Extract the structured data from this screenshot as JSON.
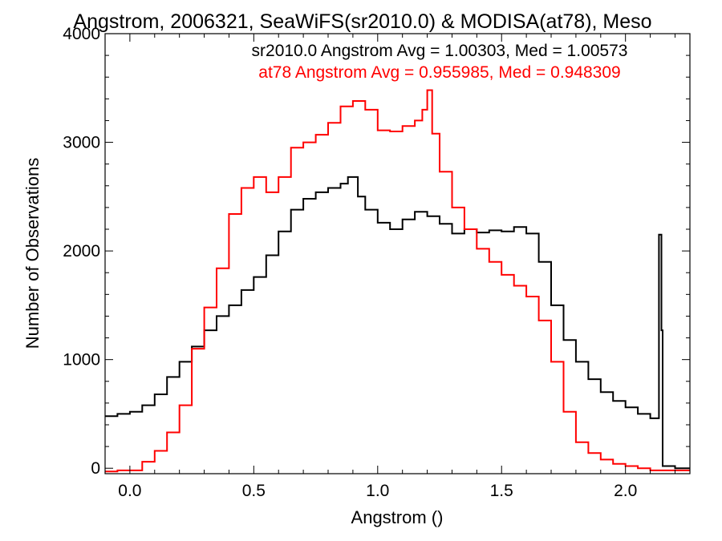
{
  "chart_data": {
    "type": "line",
    "title": "Angstrom, 2006321, SeaWiFS(sr2010.0) & MODISA(at78), Meso",
    "xlabel": "Angstrom ()",
    "ylabel": "Number of Observations",
    "xlim": [
      -0.1,
      2.26
    ],
    "ylim": [
      -50,
      4000
    ],
    "x_ticks": [
      0.0,
      0.5,
      1.0,
      1.5,
      2.0
    ],
    "x_tick_labels": [
      "0.0",
      "0.5",
      "1.0",
      "1.5",
      "2.0"
    ],
    "y_ticks": [
      0,
      1000,
      2000,
      3000,
      4000
    ],
    "y_tick_labels": [
      "0",
      "1000",
      "2000",
      "3000",
      "4000"
    ],
    "annotations": [
      {
        "text": "sr2010.0 Angstrom Avg = 1.00303, Med = 1.00573",
        "color": "#000000"
      },
      {
        "text": "at78 Angstrom Avg = 0.955985, Med = 0.948309",
        "color": "#ff0000"
      }
    ],
    "series": [
      {
        "color": "#000000",
        "points": [
          [
            -0.1,
            480
          ],
          [
            -0.05,
            500
          ],
          [
            0.0,
            520
          ],
          [
            0.05,
            580
          ],
          [
            0.1,
            680
          ],
          [
            0.15,
            840
          ],
          [
            0.2,
            980
          ],
          [
            0.25,
            1120
          ],
          [
            0.3,
            1270
          ],
          [
            0.35,
            1400
          ],
          [
            0.4,
            1500
          ],
          [
            0.45,
            1640
          ],
          [
            0.5,
            1760
          ],
          [
            0.55,
            1960
          ],
          [
            0.6,
            2180
          ],
          [
            0.65,
            2380
          ],
          [
            0.7,
            2480
          ],
          [
            0.75,
            2540
          ],
          [
            0.8,
            2580
          ],
          [
            0.85,
            2620
          ],
          [
            0.88,
            2680
          ],
          [
            0.92,
            2500
          ],
          [
            0.95,
            2380
          ],
          [
            1.0,
            2260
          ],
          [
            1.05,
            2200
          ],
          [
            1.1,
            2290
          ],
          [
            1.15,
            2360
          ],
          [
            1.2,
            2320
          ],
          [
            1.25,
            2250
          ],
          [
            1.3,
            2160
          ],
          [
            1.35,
            2200
          ],
          [
            1.4,
            2170
          ],
          [
            1.45,
            2190
          ],
          [
            1.5,
            2180
          ],
          [
            1.55,
            2220
          ],
          [
            1.6,
            2160
          ],
          [
            1.65,
            1900
          ],
          [
            1.7,
            1500
          ],
          [
            1.75,
            1180
          ],
          [
            1.8,
            980
          ],
          [
            1.85,
            820
          ],
          [
            1.9,
            700
          ],
          [
            1.95,
            620
          ],
          [
            2.0,
            560
          ],
          [
            2.05,
            500
          ],
          [
            2.1,
            460
          ],
          [
            2.13,
            460
          ],
          [
            2.135,
            2150
          ],
          [
            2.145,
            1270
          ],
          [
            2.15,
            20
          ],
          [
            2.2,
            0
          ],
          [
            2.26,
            0
          ]
        ]
      },
      {
        "color": "#ff0000",
        "points": [
          [
            -0.1,
            -30
          ],
          [
            -0.05,
            -20
          ],
          [
            0.0,
            -20
          ],
          [
            0.05,
            60
          ],
          [
            0.1,
            160
          ],
          [
            0.15,
            330
          ],
          [
            0.2,
            580
          ],
          [
            0.25,
            1100
          ],
          [
            0.3,
            1480
          ],
          [
            0.35,
            1840
          ],
          [
            0.4,
            2340
          ],
          [
            0.45,
            2580
          ],
          [
            0.5,
            2680
          ],
          [
            0.55,
            2540
          ],
          [
            0.6,
            2680
          ],
          [
            0.65,
            2950
          ],
          [
            0.7,
            3000
          ],
          [
            0.75,
            3070
          ],
          [
            0.8,
            3180
          ],
          [
            0.85,
            3330
          ],
          [
            0.9,
            3380
          ],
          [
            0.95,
            3300
          ],
          [
            1.0,
            3110
          ],
          [
            1.05,
            3100
          ],
          [
            1.1,
            3150
          ],
          [
            1.15,
            3200
          ],
          [
            1.18,
            3300
          ],
          [
            1.2,
            3480
          ],
          [
            1.22,
            3080
          ],
          [
            1.25,
            2730
          ],
          [
            1.3,
            2400
          ],
          [
            1.35,
            2200
          ],
          [
            1.4,
            2020
          ],
          [
            1.45,
            1900
          ],
          [
            1.5,
            1780
          ],
          [
            1.55,
            1680
          ],
          [
            1.6,
            1580
          ],
          [
            1.65,
            1360
          ],
          [
            1.7,
            980
          ],
          [
            1.75,
            520
          ],
          [
            1.8,
            240
          ],
          [
            1.85,
            140
          ],
          [
            1.9,
            80
          ],
          [
            1.95,
            40
          ],
          [
            2.0,
            20
          ],
          [
            2.05,
            0
          ],
          [
            2.1,
            -20
          ],
          [
            2.15,
            -20
          ],
          [
            2.26,
            -20
          ]
        ]
      }
    ]
  }
}
